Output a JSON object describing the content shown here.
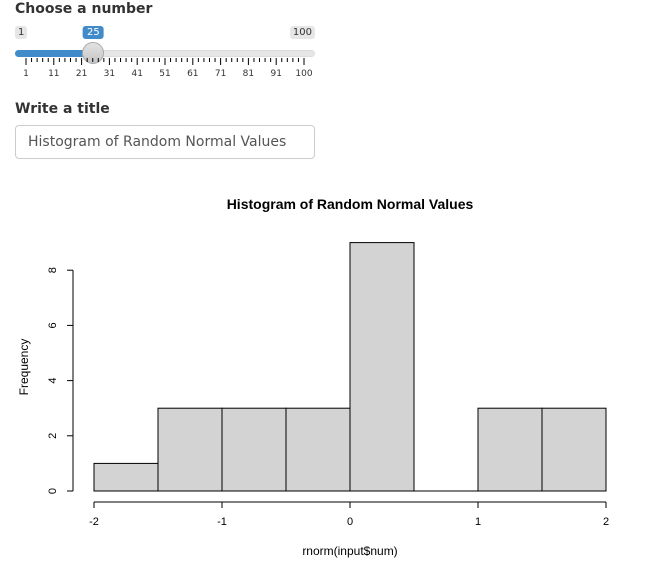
{
  "number_input": {
    "label": "Choose a number",
    "min": 1,
    "max": 100,
    "value": 25,
    "min_label": "1",
    "max_label": "100",
    "value_label": "25",
    "tick_labels": [
      "1",
      "11",
      "21",
      "31",
      "41",
      "51",
      "61",
      "71",
      "81",
      "91",
      "100"
    ],
    "accent_color": "#428bca"
  },
  "title_input": {
    "label": "Write a title",
    "value": "Histogram of Random Normal Values"
  },
  "chart_data": {
    "type": "bar",
    "title": "Histogram of Random Normal Values",
    "xlabel": "rnorm(input$num)",
    "ylabel": "Frequency",
    "bins": [
      {
        "start": -2.0,
        "end": -1.5,
        "count": 1
      },
      {
        "start": -1.5,
        "end": -1.0,
        "count": 3
      },
      {
        "start": -1.0,
        "end": -0.5,
        "count": 3
      },
      {
        "start": -0.5,
        "end": 0.0,
        "count": 3
      },
      {
        "start": 0.0,
        "end": 0.5,
        "count": 9
      },
      {
        "start": 0.5,
        "end": 1.0,
        "count": 0
      },
      {
        "start": 1.0,
        "end": 1.5,
        "count": 3
      },
      {
        "start": 1.5,
        "end": 2.0,
        "count": 3
      }
    ],
    "xlim": [
      -2,
      2
    ],
    "ylim": [
      0,
      9
    ],
    "x_ticks": [
      -2,
      -1,
      0,
      1,
      2
    ],
    "x_tick_labels": [
      "-2",
      "-1",
      "0",
      "1",
      "2"
    ],
    "y_ticks": [
      0,
      2,
      4,
      6,
      8
    ],
    "y_tick_labels": [
      "0",
      "2",
      "4",
      "6",
      "8"
    ],
    "bar_color": "#d3d3d3",
    "grid": false
  }
}
